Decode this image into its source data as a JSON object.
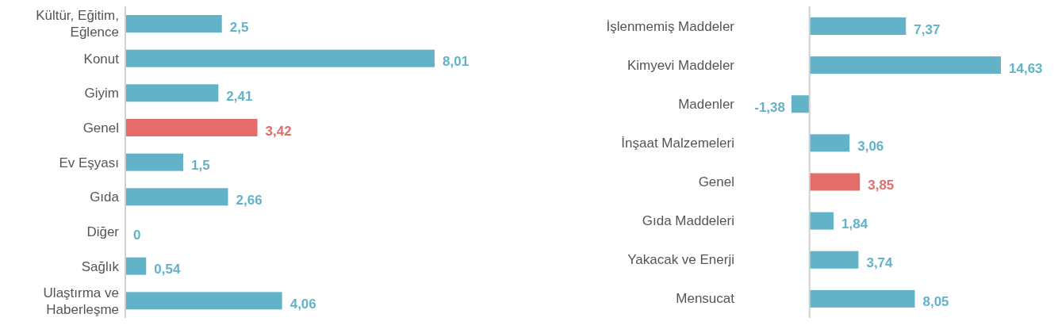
{
  "chart_data": [
    {
      "type": "bar",
      "orientation": "horizontal",
      "categories": [
        "Kültür, Eğitim, Eğlence",
        "Konut",
        "Giyim",
        "Genel",
        "Ev Eşyası",
        "Gıda",
        "Diğer",
        "Sağlık",
        "Ulaştırma ve Haberleşme"
      ],
      "values": [
        2.5,
        8.01,
        2.41,
        3.42,
        1.5,
        2.66,
        0,
        0.54,
        4.06
      ],
      "value_labels": [
        "2,5",
        "8,01",
        "2,41",
        "3,42",
        "1,5",
        "2,66",
        "0",
        "0,54",
        "4,06"
      ],
      "colors": [
        "#62b3c8",
        "#62b3c8",
        "#62b3c8",
        "#e46c6b",
        "#62b3c8",
        "#62b3c8",
        "#62b3c8",
        "#62b3c8",
        "#62b3c8"
      ]
    },
    {
      "type": "bar",
      "orientation": "horizontal",
      "categories": [
        "İşlenmemiş Maddeler",
        "Kimyevi Maddeler",
        "Madenler",
        "İnşaat Malzemeleri",
        "Genel",
        "Gıda Maddeleri",
        "Yakacak ve Enerji",
        "Mensucat"
      ],
      "values": [
        7.37,
        14.63,
        -1.38,
        3.06,
        3.85,
        1.84,
        3.74,
        8.05
      ],
      "value_labels": [
        "7,37",
        "14,63",
        "-1,38",
        "3,06",
        "3,85",
        "1,84",
        "3,74",
        "8,05"
      ],
      "colors": [
        "#62b3c8",
        "#62b3c8",
        "#62b3c8",
        "#62b3c8",
        "#e46c6b",
        "#62b3c8",
        "#62b3c8",
        "#62b3c8"
      ]
    }
  ]
}
